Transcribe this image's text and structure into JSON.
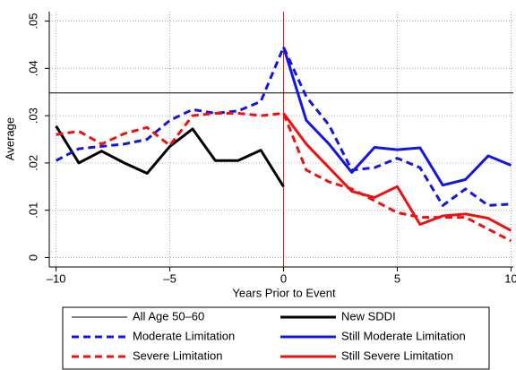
{
  "chart_data": {
    "type": "line",
    "xlabel": "Years Prior to Event",
    "ylabel": "Average",
    "xlim": [
      -10.3,
      10.1
    ],
    "ylim": [
      -0.002,
      0.052
    ],
    "xticks": [
      {
        "value": -10,
        "label": "–10"
      },
      {
        "value": -5,
        "label": "–5"
      },
      0,
      5,
      10
    ],
    "yticks": [
      0,
      {
        "value": 0.01,
        "label": ".01"
      },
      {
        "value": 0.02,
        "label": ".02"
      },
      {
        "value": 0.03,
        "label": ".03"
      },
      {
        "value": 0.04,
        "label": ".04"
      },
      {
        "value": 0.05,
        "label": ".05"
      }
    ],
    "grid": true,
    "vline": 0,
    "vline_color": "#ee1111",
    "series": [
      {
        "name": "All Age 50–60",
        "color": "#000000",
        "dash": false,
        "width": 1,
        "x": [
          -10.3,
          10.1
        ],
        "values": [
          0.0348,
          0.0348
        ]
      },
      {
        "name": "New SDDI",
        "color": "#000000",
        "dash": false,
        "width": 3,
        "x": [
          -10,
          -9,
          -8,
          -7,
          -6,
          -5,
          -4,
          -3,
          -2,
          -1,
          0
        ],
        "values": [
          0.0278,
          0.02,
          0.0225,
          0.02,
          0.0178,
          0.0235,
          0.0272,
          0.0205,
          0.0205,
          0.0227,
          0.015
        ]
      },
      {
        "name": "Moderate Limitation",
        "color": "#1515e0",
        "dash": true,
        "width": 3,
        "x": [
          -10,
          -9,
          -8,
          -7,
          -6,
          -5,
          -4,
          -3,
          -2,
          -1,
          0,
          1,
          2,
          3,
          4,
          5,
          6,
          7,
          8,
          9,
          10
        ],
        "values": [
          0.0205,
          0.023,
          0.0235,
          0.024,
          0.025,
          0.029,
          0.0313,
          0.0305,
          0.031,
          0.033,
          0.0445,
          0.034,
          0.028,
          0.0185,
          0.019,
          0.021,
          0.019,
          0.011,
          0.0145,
          0.011,
          0.0113
        ]
      },
      {
        "name": "Still Moderate Limitation",
        "color": "#1515e0",
        "dash": false,
        "width": 3,
        "x": [
          0,
          1,
          2,
          3,
          4,
          5,
          6,
          7,
          8,
          9,
          10
        ],
        "values": [
          0.0445,
          0.029,
          0.024,
          0.018,
          0.0233,
          0.0228,
          0.0232,
          0.0153,
          0.0165,
          0.0215,
          0.0195
        ]
      },
      {
        "name": "Severe Limitation",
        "color": "#ee1111",
        "dash": true,
        "width": 3,
        "x": [
          -10,
          -9,
          -8,
          -7,
          -6,
          -5,
          -4,
          -3,
          -2,
          -1,
          0,
          1,
          2,
          3,
          4,
          5,
          6,
          7,
          8,
          9,
          10
        ],
        "values": [
          0.026,
          0.0267,
          0.024,
          0.0262,
          0.0275,
          0.0237,
          0.03,
          0.0305,
          0.0305,
          0.03,
          0.0305,
          0.0185,
          0.016,
          0.0145,
          0.012,
          0.0095,
          0.0085,
          0.0085,
          0.0085,
          0.006,
          0.0035
        ]
      },
      {
        "name": "Still Severe Limitation",
        "color": "#ee1111",
        "dash": false,
        "width": 3,
        "x": [
          0,
          1,
          2,
          3,
          4,
          5,
          6,
          7,
          8,
          9,
          10
        ],
        "values": [
          0.0305,
          0.024,
          0.019,
          0.014,
          0.0127,
          0.015,
          0.007,
          0.0088,
          0.0092,
          0.0083,
          0.0057
        ]
      }
    ]
  }
}
